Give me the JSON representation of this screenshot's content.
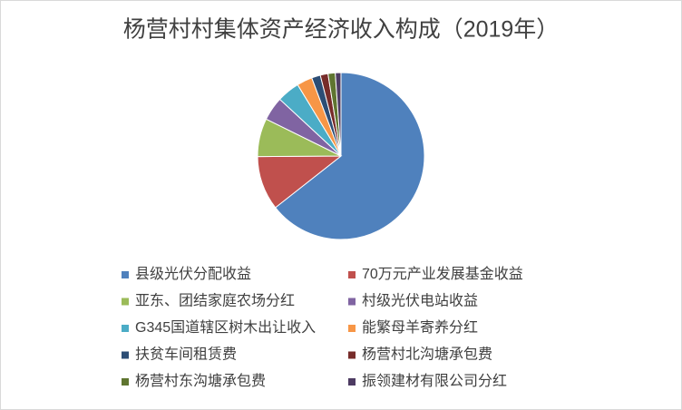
{
  "chart_data": {
    "type": "pie",
    "title": "杨营村村集体资产经济收入构成（2019年）",
    "categories": [
      "县级光伏分配收益",
      "70万元产业发展基金收益",
      "亚东、团结家庭农场分红",
      "村级光伏电站收益",
      "G345国道辖区树木出让收入",
      "能繁母羊寄养分红",
      "扶贫车间租赁费",
      "杨营村北沟塘承包费",
      "杨营村东沟塘承包费",
      "振领建材有限公司分红"
    ],
    "values": [
      64.4,
      10.5,
      7.4,
      4.6,
      4.4,
      3.0,
      1.7,
      1.5,
      1.4,
      1.1
    ],
    "colors": [
      "#4f81bd",
      "#c0504d",
      "#9bbb59",
      "#8064a2",
      "#4bacc6",
      "#f79646",
      "#2c4d75",
      "#772c2a",
      "#5f7530",
      "#4d3b62"
    ],
    "legend": "bottom"
  }
}
